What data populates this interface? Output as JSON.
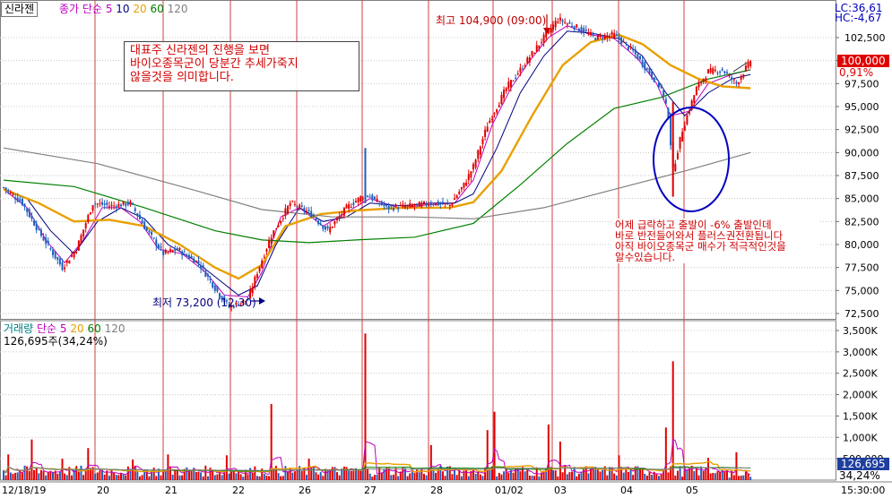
{
  "symbol": "신라젠",
  "price_legend": {
    "label": "종가 단순",
    "periods": [
      {
        "value": "5",
        "color": "#c000c0"
      },
      {
        "value": "10",
        "color": "#000080"
      },
      {
        "value": "20",
        "color": "#e8a000"
      },
      {
        "value": "60",
        "color": "#008000"
      },
      {
        "value": "120",
        "color": "#808080"
      }
    ]
  },
  "volume_legend": {
    "label": "거래량",
    "ma_label": "단순",
    "periods": [
      {
        "value": "5",
        "color": "#c000c0"
      },
      {
        "value": "20",
        "color": "#e8a000"
      },
      {
        "value": "60",
        "color": "#008000"
      },
      {
        "value": "120",
        "color": "#808080"
      }
    ],
    "info": "126,695주(34,24%)"
  },
  "top_right": {
    "lc": "LC:36,61",
    "hc": "HC:-4,67"
  },
  "current_price": {
    "label": "100,000",
    "pct": "0,91%"
  },
  "current_volume": {
    "label": "126,695",
    "pct": "34,24%"
  },
  "annotations": {
    "high": "최고 104,900 (09:00)",
    "low": "최저 73,200 (12:30)",
    "note1": [
      "대표주 신라젠의 진행을 보면",
      "바이오종목군이 당분간 추세가죽지",
      "않을것을 의미합니다."
    ],
    "note2": [
      "어제 급락하고 출발이 -6% 출발인데",
      "바로 반전들어와서 플러스권전환됩니다",
      "아직 바이오종목군 매수가 적극적인것을",
      "알수있습니다."
    ]
  },
  "chart_data": {
    "type": "candlestick",
    "interval": "intraday 30-minute",
    "price_axis": {
      "min": 72500,
      "max": 102500,
      "ticks": [
        "102,500",
        "100,000",
        "97,500",
        "95,000",
        "92,500",
        "90,000",
        "87,500",
        "85,000",
        "82,500",
        "80,000",
        "77,500",
        "75,000",
        "72,500"
      ]
    },
    "volume_axis": {
      "min": 0,
      "max": 3500000,
      "ticks": [
        "3,500K",
        "3,000K",
        "2,500K",
        "2,000K",
        "1,500K",
        "1,000K",
        "500,000"
      ]
    },
    "date_labels": [
      "12/18/19",
      "20",
      "21",
      "22",
      "26",
      "27",
      "28",
      "01/02",
      "03",
      "04",
      "05"
    ],
    "time_label": "15:30:00",
    "price_path": [
      [
        0,
        86200
      ],
      [
        8,
        84500
      ],
      [
        16,
        81000
      ],
      [
        25,
        77500
      ],
      [
        31,
        79500
      ],
      [
        38,
        84500
      ],
      [
        46,
        84200
      ],
      [
        54,
        84500
      ],
      [
        61,
        81500
      ],
      [
        68,
        79000
      ],
      [
        74,
        79500
      ],
      [
        83,
        78000
      ],
      [
        92,
        74500
      ],
      [
        96,
        73200
      ],
      [
        104,
        74000
      ],
      [
        108,
        77000
      ],
      [
        114,
        81000
      ],
      [
        122,
        84500
      ],
      [
        130,
        83500
      ],
      [
        138,
        81500
      ],
      [
        146,
        84000
      ],
      [
        154,
        85500
      ],
      [
        163,
        84000
      ],
      [
        174,
        84200
      ],
      [
        182,
        84500
      ],
      [
        190,
        84300
      ],
      [
        196,
        86500
      ],
      [
        200,
        88500
      ],
      [
        206,
        93000
      ],
      [
        214,
        97000
      ],
      [
        220,
        99000
      ],
      [
        230,
        102500
      ],
      [
        236,
        104500
      ],
      [
        244,
        103600
      ],
      [
        252,
        102500
      ],
      [
        260,
        102800
      ],
      [
        268,
        101000
      ],
      [
        274,
        99000
      ],
      [
        280,
        97000
      ],
      [
        283,
        94000
      ],
      [
        285,
        88000
      ],
      [
        289,
        92500
      ],
      [
        295,
        97000
      ],
      [
        300,
        98800
      ],
      [
        306,
        99000
      ],
      [
        312,
        97500
      ],
      [
        318,
        100000
      ]
    ],
    "ma_lines": [
      {
        "name": "5",
        "points": [
          [
            0,
            86000
          ],
          [
            10,
            84000
          ],
          [
            18,
            80500
          ],
          [
            26,
            78000
          ],
          [
            34,
            80500
          ],
          [
            42,
            84000
          ],
          [
            50,
            84000
          ],
          [
            58,
            82500
          ],
          [
            66,
            79500
          ],
          [
            76,
            79000
          ],
          [
            86,
            77000
          ],
          [
            94,
            74500
          ],
          [
            104,
            74300
          ],
          [
            110,
            77000
          ],
          [
            118,
            83000
          ],
          [
            126,
            84000
          ],
          [
            136,
            82000
          ],
          [
            146,
            83500
          ],
          [
            156,
            85000
          ],
          [
            168,
            84000
          ],
          [
            180,
            84300
          ],
          [
            192,
            84500
          ],
          [
            200,
            87000
          ],
          [
            208,
            93000
          ],
          [
            216,
            97000
          ],
          [
            224,
            100000
          ],
          [
            232,
            102500
          ],
          [
            240,
            103800
          ],
          [
            250,
            102800
          ],
          [
            260,
            102400
          ],
          [
            270,
            100200
          ],
          [
            278,
            97500
          ],
          [
            284,
            94000
          ],
          [
            292,
            94500
          ],
          [
            300,
            97500
          ],
          [
            310,
            98500
          ],
          [
            318,
            99000
          ]
        ]
      },
      {
        "name": "10",
        "points": [
          [
            0,
            86000
          ],
          [
            10,
            85000
          ],
          [
            20,
            81500
          ],
          [
            30,
            79000
          ],
          [
            40,
            82500
          ],
          [
            50,
            84000
          ],
          [
            60,
            82800
          ],
          [
            70,
            80000
          ],
          [
            80,
            78500
          ],
          [
            90,
            76500
          ],
          [
            100,
            74500
          ],
          [
            108,
            75500
          ],
          [
            116,
            80000
          ],
          [
            126,
            84000
          ],
          [
            136,
            82500
          ],
          [
            146,
            83000
          ],
          [
            156,
            84500
          ],
          [
            170,
            84200
          ],
          [
            182,
            84500
          ],
          [
            192,
            84500
          ],
          [
            200,
            85500
          ],
          [
            210,
            90500
          ],
          [
            220,
            96500
          ],
          [
            230,
            100500
          ],
          [
            240,
            103200
          ],
          [
            250,
            103000
          ],
          [
            262,
            102400
          ],
          [
            272,
            100500
          ],
          [
            282,
            96500
          ],
          [
            290,
            94000
          ],
          [
            300,
            96500
          ],
          [
            310,
            98000
          ],
          [
            318,
            98500
          ]
        ]
      },
      {
        "name": "20",
        "points": [
          [
            0,
            86000
          ],
          [
            15,
            84500
          ],
          [
            30,
            82500
          ],
          [
            45,
            82700
          ],
          [
            60,
            82000
          ],
          [
            75,
            80000
          ],
          [
            90,
            77500
          ],
          [
            100,
            76300
          ],
          [
            110,
            77800
          ],
          [
            120,
            82000
          ],
          [
            135,
            83300
          ],
          [
            150,
            83700
          ],
          [
            170,
            84000
          ],
          [
            190,
            84000
          ],
          [
            200,
            84600
          ],
          [
            212,
            88000
          ],
          [
            225,
            94000
          ],
          [
            238,
            99500
          ],
          [
            250,
            102000
          ],
          [
            262,
            102800
          ],
          [
            272,
            101800
          ],
          [
            284,
            99500
          ],
          [
            296,
            98000
          ],
          [
            306,
            97200
          ],
          [
            318,
            97000
          ]
        ]
      },
      {
        "name": "60",
        "points": [
          [
            0,
            87000
          ],
          [
            30,
            86300
          ],
          [
            60,
            84000
          ],
          [
            90,
            81500
          ],
          [
            110,
            80500
          ],
          [
            130,
            80200
          ],
          [
            150,
            80500
          ],
          [
            175,
            80800
          ],
          [
            200,
            82300
          ],
          [
            220,
            86500
          ],
          [
            240,
            91000
          ],
          [
            260,
            94800
          ],
          [
            280,
            96000
          ],
          [
            300,
            98000
          ],
          [
            318,
            99000
          ]
        ]
      },
      {
        "name": "120",
        "points": [
          [
            0,
            90500
          ],
          [
            40,
            88800
          ],
          [
            80,
            86000
          ],
          [
            110,
            83800
          ],
          [
            140,
            83000
          ],
          [
            175,
            83000
          ],
          [
            200,
            82800
          ],
          [
            230,
            84000
          ],
          [
            260,
            86000
          ],
          [
            290,
            88000
          ],
          [
            318,
            90000
          ]
        ]
      }
    ]
  }
}
